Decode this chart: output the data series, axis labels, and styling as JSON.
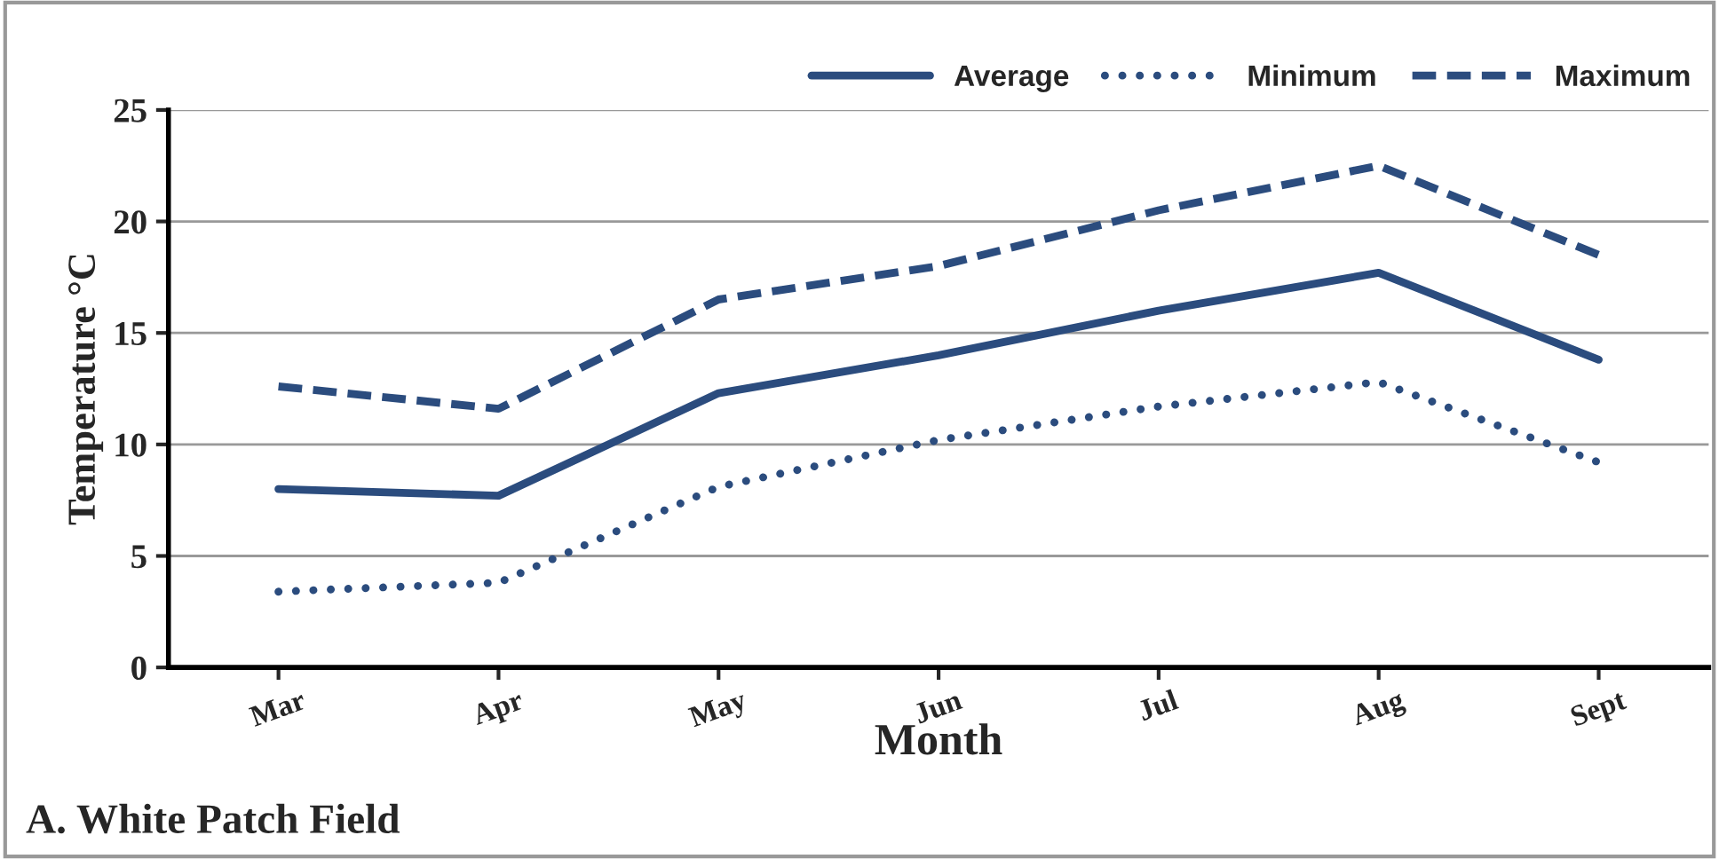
{
  "chart_data": {
    "type": "line",
    "xlabel": "Month",
    "ylabel": "Temperature °C",
    "categories": [
      "Mar",
      "Apr",
      "May",
      "Jun",
      "Jul",
      "Aug",
      "Sept"
    ],
    "series": [
      {
        "name": "Average",
        "color": "#2b4c7e",
        "line_style": "solid",
        "values": [
          8,
          7.7,
          12.3,
          14,
          16,
          17.7,
          13.8
        ]
      },
      {
        "name": "Minimum",
        "color": "#2b4c7e",
        "line_style": "dotted",
        "values": [
          3.4,
          3.8,
          8.1,
          10.2,
          11.7,
          12.8,
          9.2
        ]
      },
      {
        "name": "Maximum",
        "color": "#2b4c7e",
        "line_style": "dashed",
        "values": [
          12.6,
          11.6,
          16.5,
          18,
          20.5,
          22.5,
          18.5
        ]
      }
    ],
    "ylim": [
      0,
      25
    ],
    "yticks": [
      0,
      5,
      10,
      15,
      20,
      25
    ],
    "grid": "y",
    "legend": "top right",
    "marker": "none",
    "annotations": [
      "A. White Patch Field"
    ]
  }
}
